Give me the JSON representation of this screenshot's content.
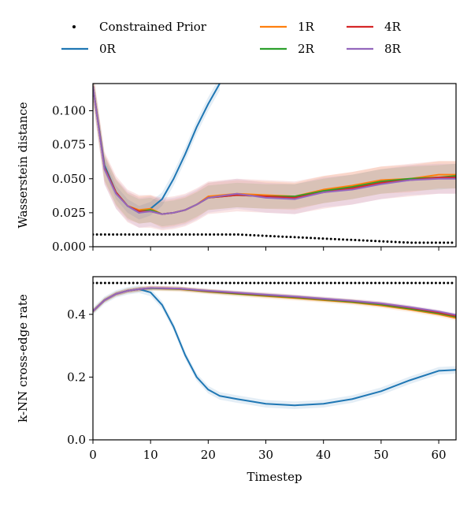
{
  "legend": {
    "items": [
      {
        "label": "Constrained Prior",
        "color": "#000000",
        "style": "dots"
      },
      {
        "label": "0R",
        "color": "#1f77b4",
        "style": "line"
      },
      {
        "label": "1R",
        "color": "#ff7f0e",
        "style": "line"
      },
      {
        "label": "2R",
        "color": "#2ca02c",
        "style": "line"
      },
      {
        "label": "4R",
        "color": "#d62728",
        "style": "line"
      },
      {
        "label": "8R",
        "color": "#9467bd",
        "style": "line"
      }
    ]
  },
  "chart_data": [
    {
      "type": "line",
      "ylabel": "Wasserstein distance",
      "xlim": [
        0,
        63
      ],
      "ylim": [
        0,
        0.12
      ],
      "yticks": [
        "0.000",
        "0.025",
        "0.050",
        "0.075",
        "0.100"
      ],
      "ytick_values": [
        0,
        0.025,
        0.05,
        0.075,
        0.1
      ],
      "xticks": [
        0,
        10,
        20,
        30,
        40,
        50,
        60
      ],
      "series": [
        {
          "name": "Constrained Prior",
          "x": [
            0,
            5,
            10,
            15,
            20,
            25,
            30,
            35,
            40,
            45,
            50,
            55,
            60,
            63
          ],
          "y": [
            0.009,
            0.009,
            0.009,
            0.009,
            0.009,
            0.009,
            0.008,
            0.007,
            0.006,
            0.005,
            0.004,
            0.003,
            0.003,
            0.003
          ]
        },
        {
          "name": "0R",
          "x": [
            0,
            2,
            4,
            6,
            8,
            10,
            12,
            14,
            16,
            18,
            20,
            22
          ],
          "y": [
            0.118,
            0.06,
            0.04,
            0.03,
            0.025,
            0.028,
            0.035,
            0.05,
            0.068,
            0.088,
            0.105,
            0.12
          ]
        },
        {
          "name": "1R",
          "x": [
            0,
            2,
            4,
            6,
            8,
            10,
            12,
            14,
            16,
            18,
            20,
            25,
            30,
            35,
            40,
            45,
            50,
            55,
            60,
            63
          ],
          "y": [
            0.118,
            0.058,
            0.04,
            0.03,
            0.027,
            0.028,
            0.024,
            0.025,
            0.027,
            0.031,
            0.037,
            0.039,
            0.038,
            0.037,
            0.042,
            0.045,
            0.049,
            0.05,
            0.053,
            0.053
          ]
        },
        {
          "name": "2R",
          "x": [
            0,
            2,
            4,
            6,
            8,
            10,
            12,
            14,
            16,
            18,
            20,
            25,
            30,
            35,
            40,
            45,
            50,
            55,
            60,
            63
          ],
          "y": [
            0.118,
            0.058,
            0.04,
            0.03,
            0.026,
            0.027,
            0.024,
            0.025,
            0.027,
            0.031,
            0.036,
            0.038,
            0.037,
            0.037,
            0.041,
            0.044,
            0.048,
            0.05,
            0.051,
            0.052
          ]
        },
        {
          "name": "4R",
          "x": [
            0,
            2,
            4,
            6,
            8,
            10,
            12,
            14,
            16,
            18,
            20,
            25,
            30,
            35,
            40,
            45,
            50,
            55,
            60,
            63
          ],
          "y": [
            0.118,
            0.058,
            0.04,
            0.03,
            0.026,
            0.026,
            0.024,
            0.025,
            0.027,
            0.031,
            0.036,
            0.038,
            0.037,
            0.036,
            0.04,
            0.043,
            0.047,
            0.049,
            0.051,
            0.051
          ]
        },
        {
          "name": "8R",
          "x": [
            0,
            2,
            4,
            6,
            8,
            10,
            12,
            14,
            16,
            18,
            20,
            25,
            30,
            35,
            40,
            45,
            50,
            55,
            60,
            63
          ],
          "y": [
            0.118,
            0.057,
            0.039,
            0.03,
            0.025,
            0.026,
            0.024,
            0.025,
            0.027,
            0.031,
            0.036,
            0.039,
            0.036,
            0.035,
            0.04,
            0.042,
            0.046,
            0.049,
            0.05,
            0.05
          ]
        }
      ]
    },
    {
      "type": "line",
      "ylabel": "k-NN cross-edge rate",
      "xlabel": "Timestep",
      "xlim": [
        0,
        63
      ],
      "ylim": [
        0,
        0.52
      ],
      "yticks": [
        "0.0",
        "0.2",
        "0.4"
      ],
      "ytick_values": [
        0,
        0.2,
        0.4
      ],
      "xticks": [
        0,
        10,
        20,
        30,
        40,
        50,
        60
      ],
      "series": [
        {
          "name": "Constrained Prior",
          "x": [
            0,
            10,
            20,
            30,
            40,
            50,
            60,
            63
          ],
          "y": [
            0.5,
            0.5,
            0.5,
            0.5,
            0.5,
            0.5,
            0.5,
            0.5
          ]
        },
        {
          "name": "0R",
          "x": [
            0,
            2,
            4,
            6,
            8,
            10,
            12,
            14,
            16,
            18,
            20,
            22,
            25,
            30,
            35,
            40,
            45,
            50,
            55,
            60,
            63
          ],
          "y": [
            0.41,
            0.445,
            0.465,
            0.475,
            0.48,
            0.47,
            0.43,
            0.36,
            0.27,
            0.2,
            0.16,
            0.14,
            0.13,
            0.115,
            0.11,
            0.115,
            0.13,
            0.155,
            0.19,
            0.22,
            0.223
          ]
        },
        {
          "name": "1R",
          "x": [
            0,
            2,
            4,
            6,
            8,
            10,
            15,
            20,
            25,
            30,
            35,
            40,
            45,
            50,
            55,
            60,
            63
          ],
          "y": [
            0.41,
            0.445,
            0.465,
            0.475,
            0.48,
            0.483,
            0.48,
            0.472,
            0.465,
            0.458,
            0.452,
            0.445,
            0.438,
            0.428,
            0.415,
            0.4,
            0.388
          ]
        },
        {
          "name": "2R",
          "x": [
            0,
            2,
            4,
            6,
            8,
            10,
            15,
            20,
            25,
            30,
            35,
            40,
            45,
            50,
            55,
            60,
            63
          ],
          "y": [
            0.41,
            0.445,
            0.465,
            0.475,
            0.48,
            0.483,
            0.481,
            0.473,
            0.466,
            0.46,
            0.454,
            0.447,
            0.44,
            0.431,
            0.418,
            0.403,
            0.392
          ]
        },
        {
          "name": "4R",
          "x": [
            0,
            2,
            4,
            6,
            8,
            10,
            15,
            20,
            25,
            30,
            35,
            40,
            45,
            50,
            55,
            60,
            63
          ],
          "y": [
            0.41,
            0.445,
            0.465,
            0.475,
            0.48,
            0.484,
            0.482,
            0.474,
            0.468,
            0.462,
            0.456,
            0.449,
            0.442,
            0.434,
            0.421,
            0.406,
            0.395
          ]
        },
        {
          "name": "8R",
          "x": [
            0,
            2,
            4,
            6,
            8,
            10,
            15,
            20,
            25,
            30,
            35,
            40,
            45,
            50,
            55,
            60,
            63
          ],
          "y": [
            0.41,
            0.445,
            0.465,
            0.475,
            0.48,
            0.484,
            0.482,
            0.475,
            0.469,
            0.463,
            0.457,
            0.45,
            0.443,
            0.435,
            0.423,
            0.409,
            0.398
          ]
        }
      ]
    }
  ]
}
